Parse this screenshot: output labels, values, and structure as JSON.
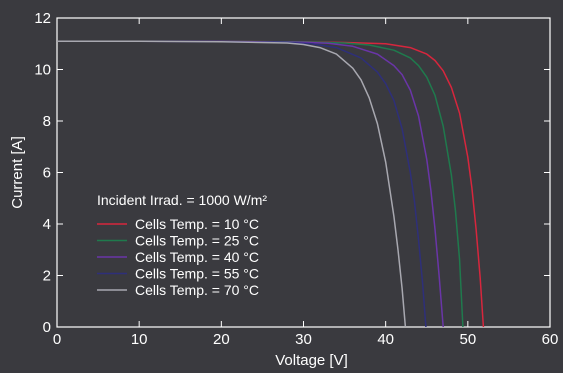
{
  "theme": {
    "background": "#3a3a3f",
    "axis_color": "#ffffff",
    "text_color": "#ffffff"
  },
  "chart_data": {
    "type": "line",
    "title": "",
    "xlabel": "Voltage [V]",
    "ylabel": "Current [A]",
    "xlim": [
      0,
      60
    ],
    "ylim": [
      0,
      12
    ],
    "xticks": [
      0,
      10,
      20,
      30,
      40,
      50,
      60
    ],
    "yticks": [
      0,
      2,
      4,
      6,
      8,
      10,
      12
    ],
    "grid": false,
    "legend": {
      "placement": "lower-left",
      "heading": "Incident Irrad. = 1000 W/m²"
    },
    "series": [
      {
        "name": "Cells Temp. =  10 °C",
        "color": "#d7263d",
        "x": [
          0,
          10,
          20,
          30,
          35,
          40,
          43,
          45,
          46,
          47,
          48,
          49,
          50,
          50.5,
          51,
          51.5,
          51.9
        ],
        "y": [
          11.1,
          11.1,
          11.09,
          11.07,
          11.05,
          11.0,
          10.85,
          10.6,
          10.35,
          9.95,
          9.3,
          8.3,
          6.6,
          5.4,
          3.8,
          1.9,
          0
        ]
      },
      {
        "name": "Cells Temp. =  25 °C",
        "color": "#1f7a4d",
        "x": [
          0,
          10,
          20,
          30,
          35,
          38,
          41,
          43,
          44,
          45,
          46,
          47,
          48,
          48.5,
          49,
          49.4
        ],
        "y": [
          11.1,
          11.1,
          11.09,
          11.07,
          11.03,
          10.95,
          10.75,
          10.45,
          10.15,
          9.7,
          9.0,
          7.8,
          5.9,
          4.5,
          2.6,
          0
        ]
      },
      {
        "name": "Cells Temp. =  40 °C",
        "color": "#6a35a8",
        "x": [
          0,
          10,
          20,
          30,
          33,
          36,
          39,
          41,
          42,
          43,
          44,
          45,
          45.5,
          46,
          46.5,
          47
        ],
        "y": [
          11.1,
          11.1,
          11.09,
          11.06,
          11.02,
          10.9,
          10.6,
          10.15,
          9.8,
          9.2,
          8.2,
          6.5,
          5.3,
          3.8,
          2.0,
          0
        ]
      },
      {
        "name": "Cells Temp. =  55 °C",
        "color": "#2e2f7a",
        "x": [
          0,
          10,
          20,
          28,
          31,
          34,
          37,
          39,
          40,
          41,
          42,
          43,
          43.5,
          44,
          44.5,
          44.9
        ],
        "y": [
          11.1,
          11.1,
          11.08,
          11.05,
          11.0,
          10.85,
          10.45,
          9.9,
          9.45,
          8.8,
          7.7,
          6.0,
          4.9,
          3.4,
          1.7,
          0
        ]
      },
      {
        "name": "Cells Temp. =  70 °C",
        "color": "#a8a8b0",
        "x": [
          0,
          10,
          20,
          28,
          30,
          32,
          34,
          36,
          37,
          38,
          39,
          40,
          41,
          41.5,
          42,
          42.4
        ],
        "y": [
          11.1,
          11.1,
          11.08,
          11.03,
          10.97,
          10.85,
          10.6,
          10.05,
          9.6,
          8.9,
          7.9,
          6.4,
          4.3,
          3.0,
          1.5,
          0
        ]
      }
    ]
  }
}
